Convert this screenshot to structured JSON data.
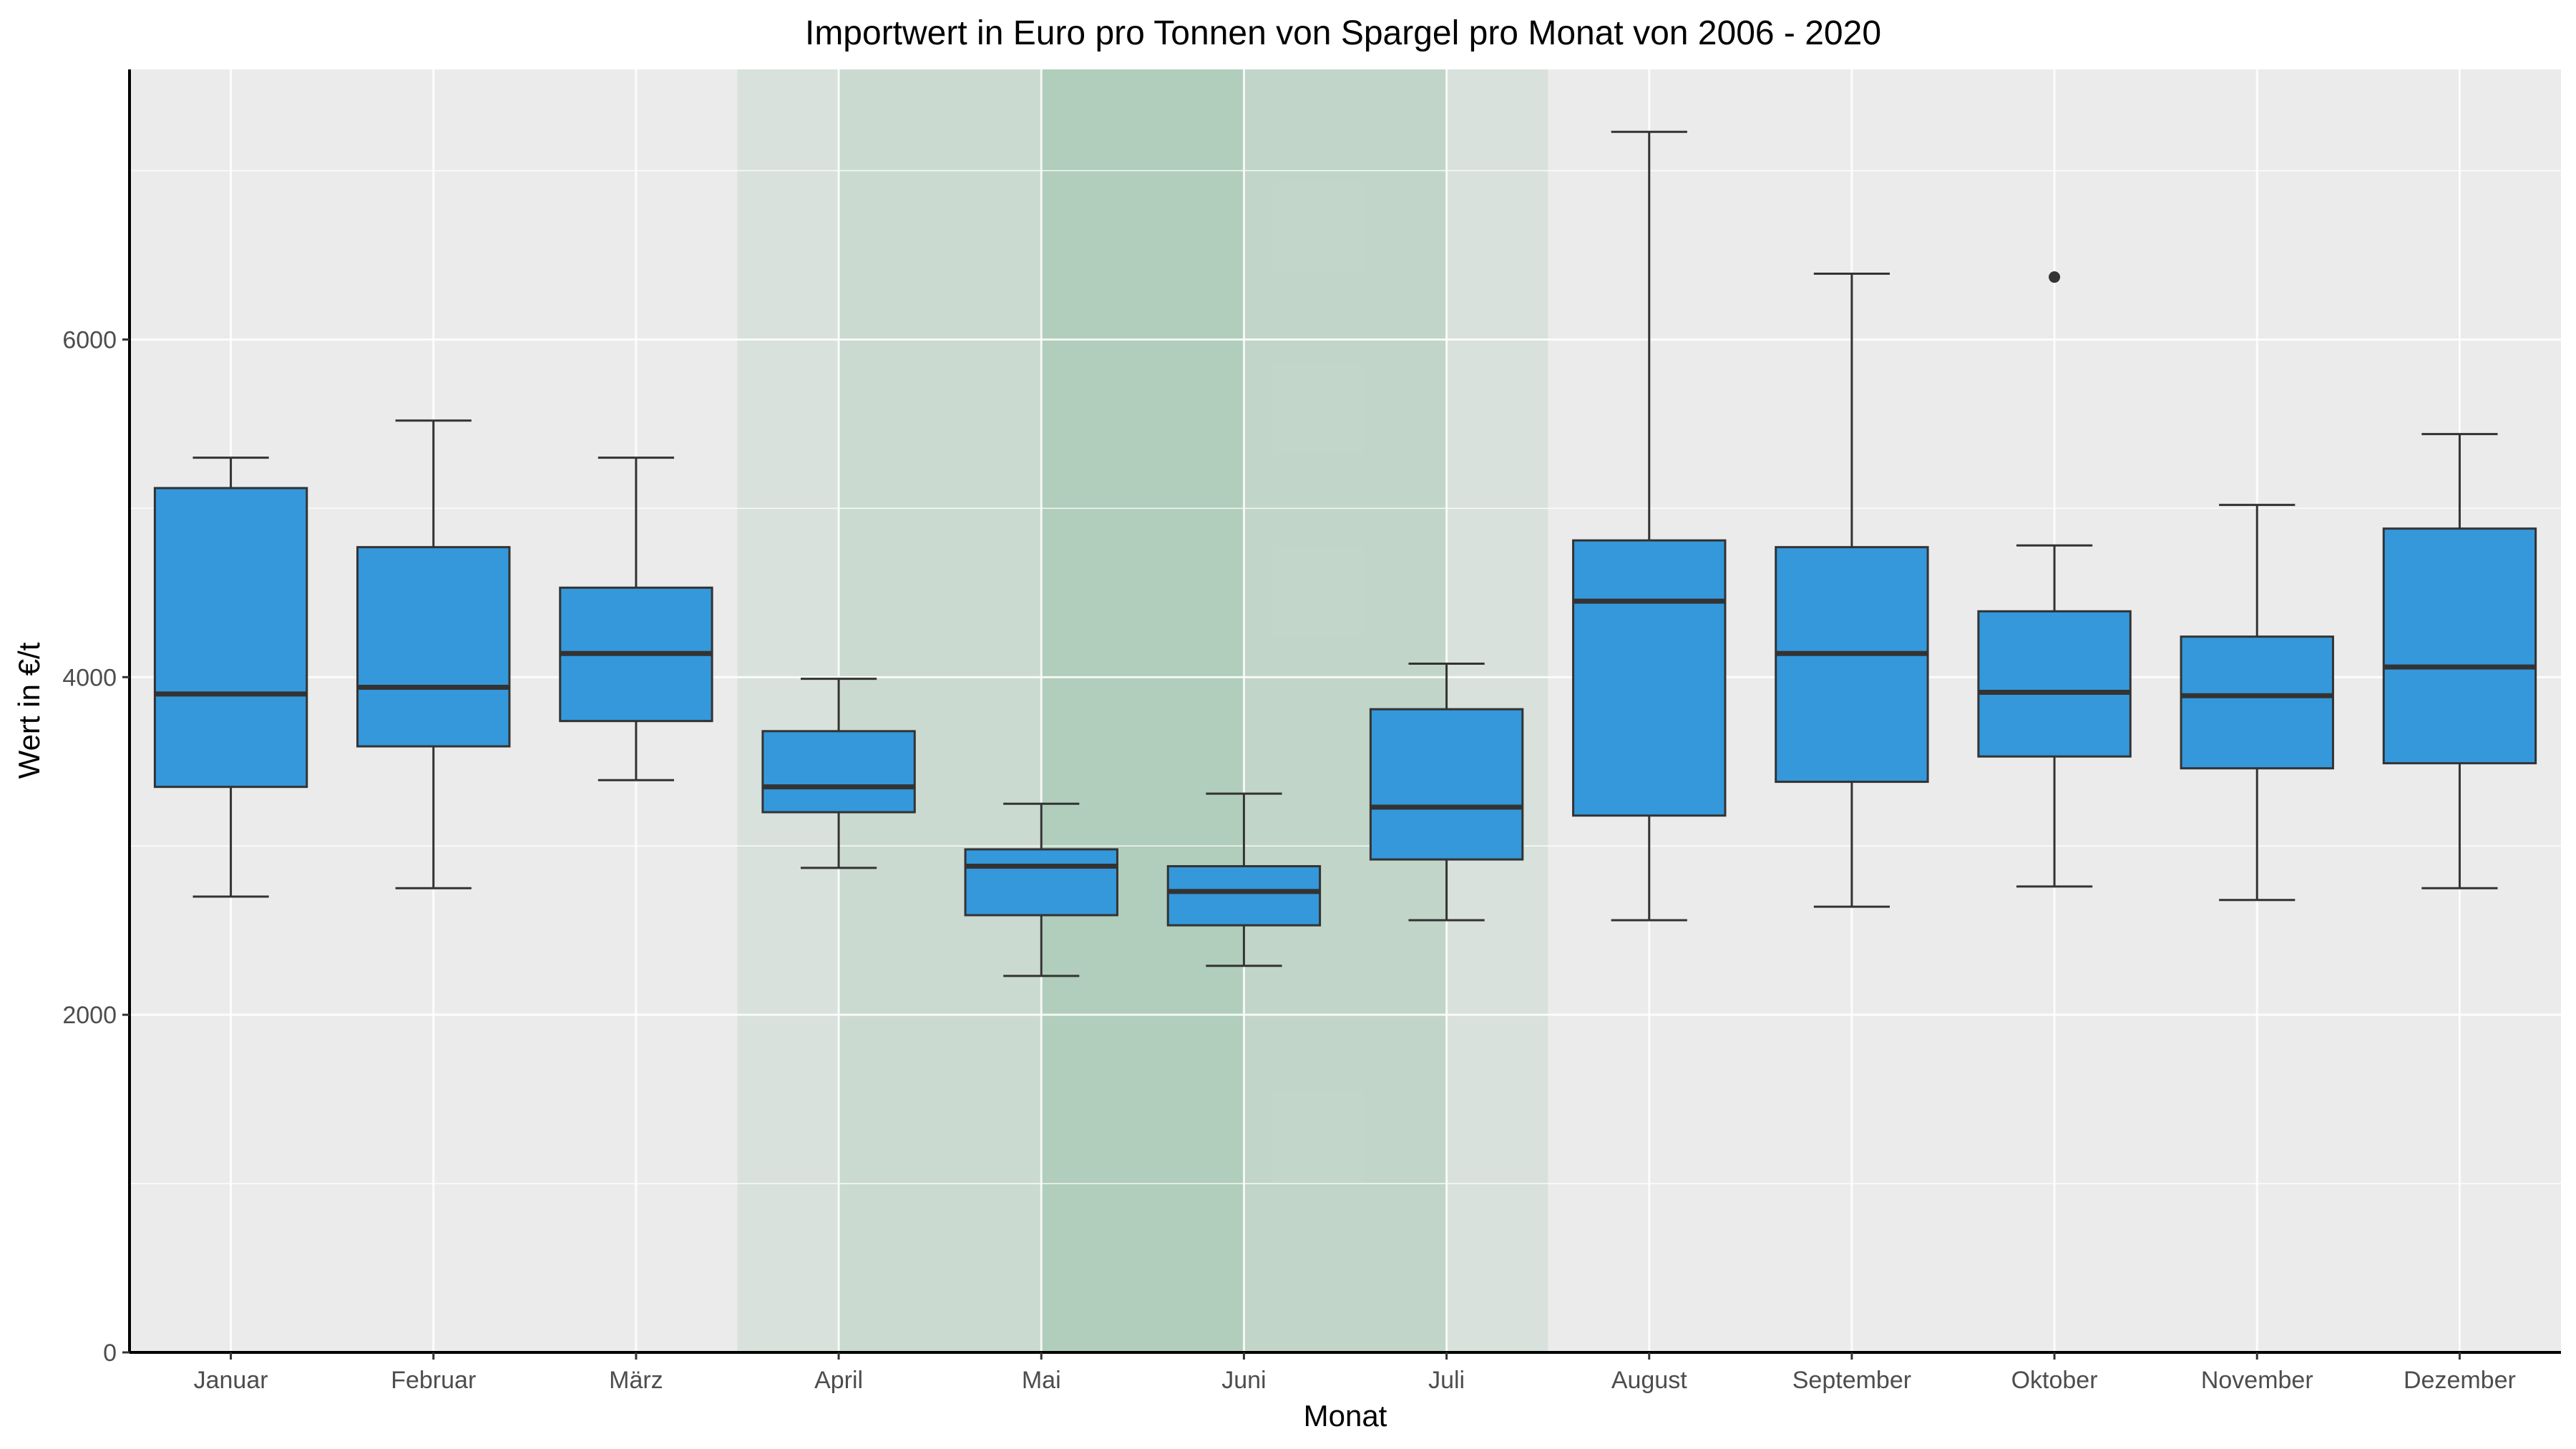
{
  "chart_data": {
    "type": "boxplot",
    "title": "Importwert in Euro pro Tonnen von Spargel pro Monat von 2006 - 2020",
    "xlabel": "Monat",
    "ylabel": "Wert in €/t",
    "categories": [
      "Januar",
      "Februar",
      "März",
      "April",
      "Mai",
      "Juni",
      "Juli",
      "August",
      "September",
      "Oktober",
      "November",
      "Dezember"
    ],
    "ylim": [
      0,
      7600
    ],
    "yticks": [
      0,
      2000,
      4000,
      6000
    ],
    "grid": true,
    "boxes": [
      {
        "min": 2700,
        "q1": 3350,
        "median": 3900,
        "q3": 5120,
        "max": 5300,
        "outliers": []
      },
      {
        "min": 2750,
        "q1": 3590,
        "median": 3940,
        "q3": 4770,
        "max": 5520,
        "outliers": []
      },
      {
        "min": 3390,
        "q1": 3740,
        "median": 4140,
        "q3": 4530,
        "max": 5300,
        "outliers": []
      },
      {
        "min": 2870,
        "q1": 3200,
        "median": 3350,
        "q3": 3680,
        "max": 3990,
        "outliers": []
      },
      {
        "min": 2230,
        "q1": 2590,
        "median": 2880,
        "q3": 2980,
        "max": 3250,
        "outliers": []
      },
      {
        "min": 2290,
        "q1": 2530,
        "median": 2730,
        "q3": 2880,
        "max": 3310,
        "outliers": []
      },
      {
        "min": 2560,
        "q1": 2920,
        "median": 3230,
        "q3": 3810,
        "max": 4080,
        "outliers": []
      },
      {
        "min": 2560,
        "q1": 3180,
        "median": 4450,
        "q3": 4810,
        "max": 7230,
        "outliers": []
      },
      {
        "min": 2640,
        "q1": 3380,
        "median": 4140,
        "q3": 4770,
        "max": 6390,
        "outliers": []
      },
      {
        "min": 2760,
        "q1": 3530,
        "median": 3910,
        "q3": 4390,
        "max": 4780,
        "outliers": [
          6370
        ]
      },
      {
        "min": 2680,
        "q1": 3460,
        "median": 3890,
        "q3": 4240,
        "max": 5020,
        "outliers": []
      },
      {
        "min": 2750,
        "q1": 3490,
        "median": 4060,
        "q3": 4880,
        "max": 5440,
        "outliers": []
      }
    ],
    "season_bands": [
      {
        "from": 2.5,
        "to": 3.0,
        "opacity": 0.15
      },
      {
        "from": 3.0,
        "to": 4.0,
        "opacity": 0.25
      },
      {
        "from": 4.0,
        "to": 5.0,
        "opacity": 0.45
      },
      {
        "from": 5.0,
        "to": 6.0,
        "opacity": 0.32
      },
      {
        "from": 6.0,
        "to": 6.5,
        "opacity": 0.15
      }
    ],
    "colors": {
      "panel": "#ebebeb",
      "grid": "#ffffff",
      "box_fill": "#3498db",
      "box_stroke": "#333333",
      "band": "#6aa880"
    }
  }
}
